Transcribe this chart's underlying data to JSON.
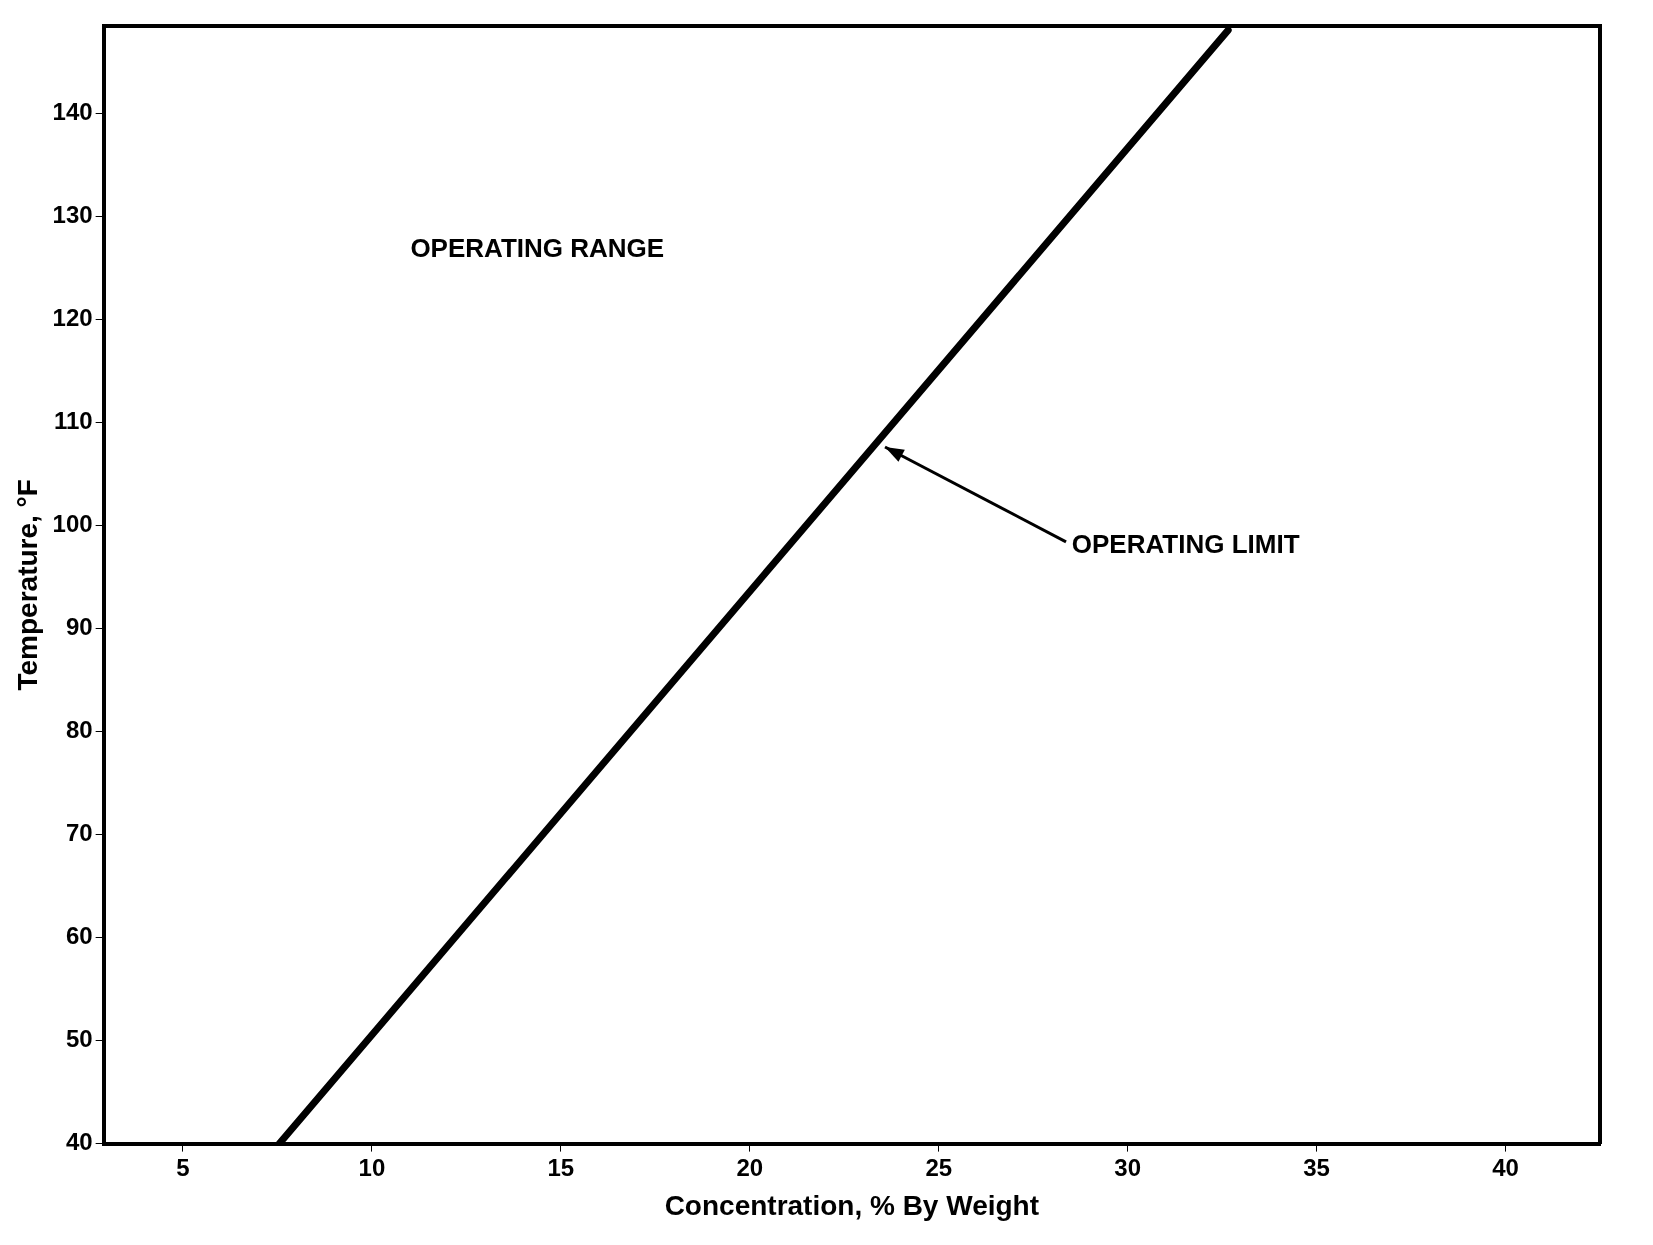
{
  "chart_data": {
    "type": "line",
    "xlabel": "Concentration, % By Weight",
    "ylabel": "Temperature, °F",
    "xlim": [
      2.9,
      42.5
    ],
    "ylim": [
      40,
      148.5
    ],
    "xticks": [
      5,
      10,
      15,
      20,
      25,
      30,
      35,
      40
    ],
    "yticks": [
      40,
      50,
      60,
      70,
      80,
      90,
      100,
      110,
      120,
      130,
      140
    ],
    "grid": false,
    "legend": false,
    "marker": "none",
    "line_style": "solid",
    "series": [
      {
        "color": "#000000",
        "x": [
          7.55,
          32.66
        ],
        "values": [
          40,
          148.1
        ]
      }
    ],
    "annotations": [
      "OPERATING RANGE",
      "OPERATING LIMIT"
    ]
  }
}
